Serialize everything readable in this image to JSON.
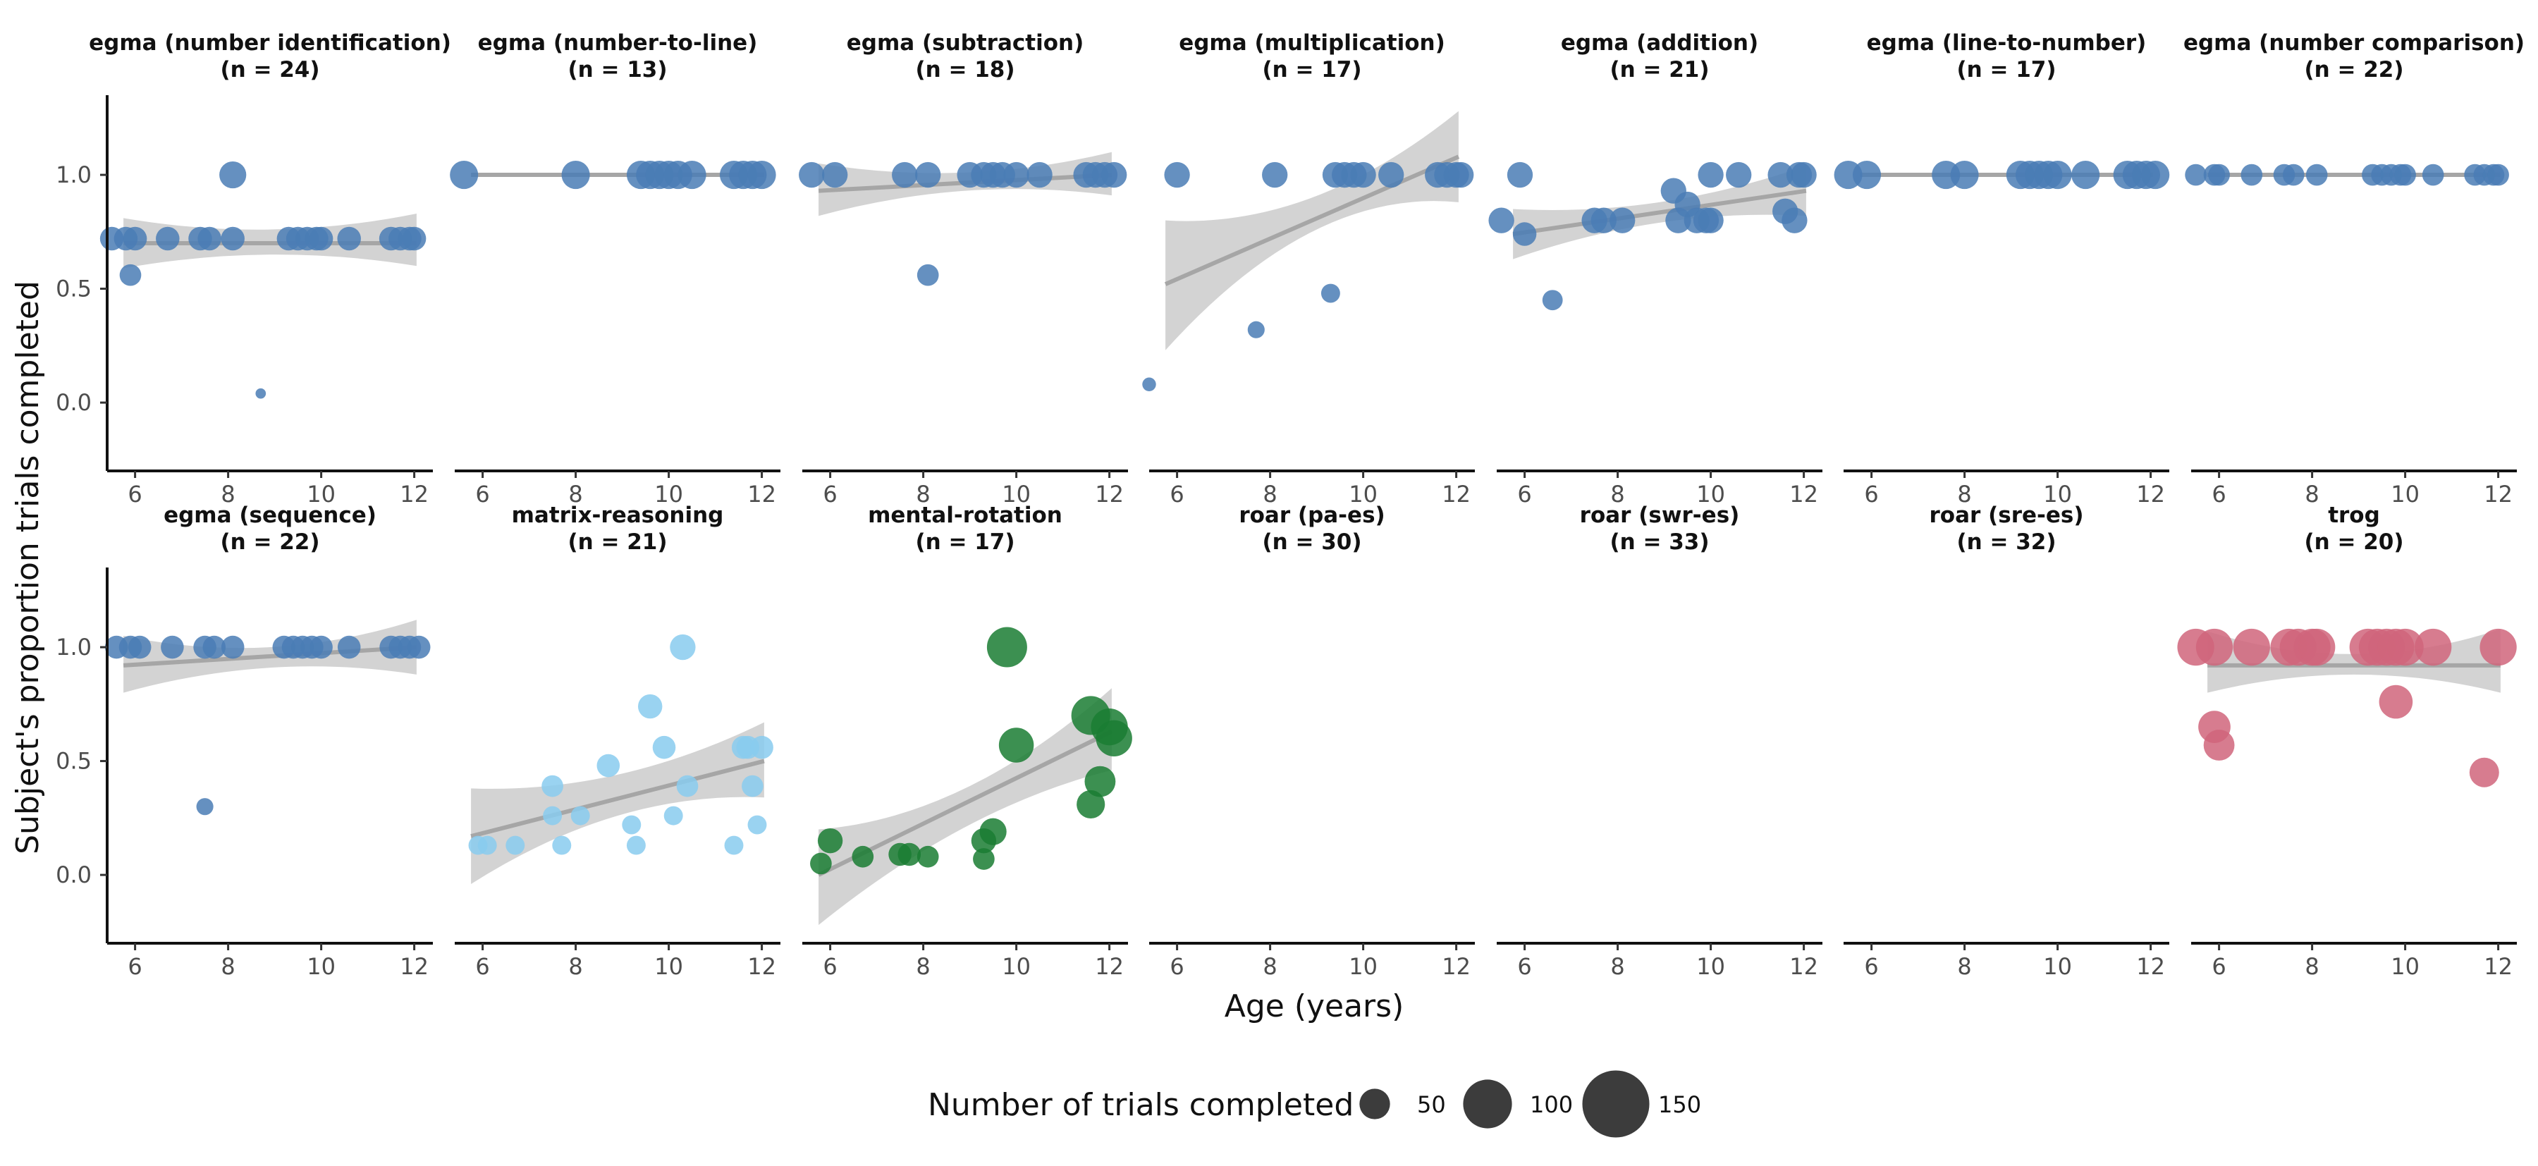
{
  "chart_data": {
    "type": "scatter",
    "xlabel": "Age (years)",
    "ylabel": "Subject's proportion trials completed",
    "xlim": [
      5.4,
      12.4
    ],
    "ylim": [
      -0.3,
      1.35
    ],
    "x_ticks": [
      6,
      8,
      10,
      12
    ],
    "y_ticks": [
      0.0,
      0.5,
      1.0
    ],
    "y_tick_labels": [
      "0.0",
      "0.5",
      "1.0"
    ],
    "grid": false,
    "legend": {
      "title": "Number of trials completed",
      "placement": "bottom",
      "sizes": [
        50,
        100,
        150
      ],
      "labels": [
        "50",
        "100",
        "150"
      ]
    },
    "colors": {
      "egma": "#4a7db5",
      "matrix": "#88cbef",
      "mental": "#1a7d33",
      "trog": "#d0657b",
      "band": "#d3d3d3",
      "line": "#a6a6a6"
    },
    "panels": [
      {
        "title": "egma (number identification)",
        "n_label": "(n = 24)",
        "color": "egma",
        "trend": [
          0.7,
          0.7
        ],
        "band_lower": [
          0.59,
          0.65,
          0.6
        ],
        "band_upper": [
          0.81,
          0.76,
          0.83
        ],
        "points": [
          [
            5.5,
            0.72,
            25
          ],
          [
            5.8,
            0.72,
            25
          ],
          [
            6.0,
            0.72,
            25
          ],
          [
            5.9,
            0.56,
            22
          ],
          [
            6.7,
            0.72,
            25
          ],
          [
            7.4,
            0.72,
            25
          ],
          [
            7.6,
            0.72,
            25
          ],
          [
            8.1,
            0.72,
            25
          ],
          [
            8.1,
            1.0,
            30
          ],
          [
            8.7,
            0.04,
            5
          ],
          [
            9.3,
            0.72,
            25
          ],
          [
            9.5,
            0.72,
            25
          ],
          [
            9.7,
            0.72,
            25
          ],
          [
            9.9,
            0.72,
            25
          ],
          [
            10.0,
            0.72,
            25
          ],
          [
            10.6,
            0.72,
            25
          ],
          [
            11.5,
            0.72,
            25
          ],
          [
            11.7,
            0.72,
            25
          ],
          [
            11.9,
            0.72,
            25
          ],
          [
            12.0,
            0.72,
            25
          ]
        ]
      },
      {
        "title": "egma (number-to-line)",
        "n_label": "(n = 13)",
        "color": "egma",
        "trend": [
          1.0,
          1.0
        ],
        "band_lower": [
          1.0,
          1.0,
          1.0
        ],
        "band_upper": [
          1.0,
          1.0,
          1.0
        ],
        "points": [
          [
            5.6,
            1.0,
            32
          ],
          [
            8.0,
            1.0,
            32
          ],
          [
            9.4,
            1.0,
            32
          ],
          [
            9.6,
            1.0,
            32
          ],
          [
            9.8,
            1.0,
            32
          ],
          [
            10.0,
            1.0,
            32
          ],
          [
            10.2,
            1.0,
            32
          ],
          [
            10.5,
            1.0,
            32
          ],
          [
            11.4,
            1.0,
            32
          ],
          [
            11.6,
            1.0,
            32
          ],
          [
            11.8,
            1.0,
            32
          ],
          [
            12.0,
            1.0,
            32
          ]
        ]
      },
      {
        "title": "egma (subtraction)",
        "n_label": "(n = 18)",
        "color": "egma",
        "trend": [
          0.93,
          1.0
        ],
        "band_lower": [
          0.82,
          0.93,
          0.91
        ],
        "band_upper": [
          1.05,
          1.01,
          1.1
        ],
        "points": [
          [
            5.6,
            1.0,
            28
          ],
          [
            6.1,
            1.0,
            28
          ],
          [
            7.6,
            1.0,
            28
          ],
          [
            8.1,
            1.0,
            28
          ],
          [
            8.1,
            0.56,
            22
          ],
          [
            9.0,
            1.0,
            28
          ],
          [
            9.3,
            1.0,
            28
          ],
          [
            9.5,
            1.0,
            28
          ],
          [
            9.7,
            1.0,
            28
          ],
          [
            10.0,
            1.0,
            28
          ],
          [
            10.5,
            1.0,
            28
          ],
          [
            11.5,
            1.0,
            28
          ],
          [
            11.7,
            1.0,
            28
          ],
          [
            11.9,
            1.0,
            28
          ],
          [
            12.1,
            1.0,
            28
          ]
        ]
      },
      {
        "title": "egma (multiplication)",
        "n_label": "(n = 17)",
        "color": "egma",
        "trend": [
          0.52,
          1.08
        ],
        "band_lower": [
          0.23,
          0.75,
          0.88
        ],
        "band_upper": [
          0.8,
          0.9,
          1.28
        ],
        "points": [
          [
            5.4,
            0.08,
            10
          ],
          [
            6.0,
            1.0,
            28
          ],
          [
            7.7,
            0.32,
            15
          ],
          [
            8.1,
            1.0,
            28
          ],
          [
            9.3,
            0.48,
            18
          ],
          [
            9.4,
            1.0,
            28
          ],
          [
            9.6,
            1.0,
            28
          ],
          [
            9.8,
            1.0,
            28
          ],
          [
            10.0,
            1.0,
            28
          ],
          [
            10.6,
            1.0,
            28
          ],
          [
            11.6,
            1.0,
            28
          ],
          [
            11.8,
            1.0,
            28
          ],
          [
            12.0,
            1.0,
            28
          ],
          [
            12.1,
            1.0,
            28
          ]
        ]
      },
      {
        "title": "egma (addition)",
        "n_label": "(n = 21)",
        "color": "egma",
        "trend": [
          0.74,
          0.93
        ],
        "band_lower": [
          0.63,
          0.79,
          0.82
        ],
        "band_upper": [
          0.85,
          0.88,
          1.04
        ],
        "points": [
          [
            5.5,
            0.8,
            28
          ],
          [
            5.9,
            1.0,
            28
          ],
          [
            6.0,
            0.74,
            25
          ],
          [
            6.6,
            0.45,
            20
          ],
          [
            7.5,
            0.8,
            28
          ],
          [
            7.7,
            0.8,
            28
          ],
          [
            8.1,
            0.8,
            28
          ],
          [
            9.2,
            0.93,
            28
          ],
          [
            9.3,
            0.8,
            28
          ],
          [
            9.5,
            0.87,
            28
          ],
          [
            9.7,
            0.8,
            28
          ],
          [
            9.9,
            0.8,
            28
          ],
          [
            10.0,
            0.8,
            28
          ],
          [
            10.0,
            1.0,
            28
          ],
          [
            10.6,
            1.0,
            28
          ],
          [
            11.5,
            1.0,
            28
          ],
          [
            11.6,
            0.84,
            28
          ],
          [
            11.8,
            0.8,
            28
          ],
          [
            11.9,
            1.0,
            28
          ],
          [
            12.0,
            1.0,
            28
          ]
        ]
      },
      {
        "title": "egma (line-to-number)",
        "n_label": "(n = 17)",
        "color": "egma",
        "trend": [
          1.0,
          1.0
        ],
        "band_lower": [
          1.0,
          1.0,
          1.0
        ],
        "band_upper": [
          1.0,
          1.0,
          1.0
        ],
        "points": [
          [
            5.5,
            1.0,
            32
          ],
          [
            5.9,
            1.0,
            32
          ],
          [
            7.6,
            1.0,
            32
          ],
          [
            8.0,
            1.0,
            32
          ],
          [
            9.2,
            1.0,
            32
          ],
          [
            9.4,
            1.0,
            32
          ],
          [
            9.6,
            1.0,
            32
          ],
          [
            9.8,
            1.0,
            32
          ],
          [
            10.0,
            1.0,
            32
          ],
          [
            10.6,
            1.0,
            32
          ],
          [
            11.5,
            1.0,
            32
          ],
          [
            11.7,
            1.0,
            32
          ],
          [
            11.9,
            1.0,
            32
          ],
          [
            12.1,
            1.0,
            32
          ]
        ]
      },
      {
        "title": "egma (number comparison)",
        "n_label": "(n = 22)",
        "color": "egma",
        "trend": [
          1.0,
          1.0
        ],
        "band_lower": [
          1.0,
          1.0,
          1.0
        ],
        "band_upper": [
          1.0,
          1.0,
          1.0
        ],
        "points": [
          [
            5.5,
            1.0,
            22
          ],
          [
            5.9,
            1.0,
            22
          ],
          [
            6.0,
            1.0,
            22
          ],
          [
            6.7,
            1.0,
            22
          ],
          [
            7.4,
            1.0,
            22
          ],
          [
            7.6,
            1.0,
            22
          ],
          [
            8.1,
            1.0,
            22
          ],
          [
            9.3,
            1.0,
            22
          ],
          [
            9.5,
            1.0,
            22
          ],
          [
            9.7,
            1.0,
            22
          ],
          [
            9.9,
            1.0,
            22
          ],
          [
            10.0,
            1.0,
            22
          ],
          [
            10.6,
            1.0,
            22
          ],
          [
            11.5,
            1.0,
            22
          ],
          [
            11.7,
            1.0,
            22
          ],
          [
            11.9,
            1.0,
            22
          ],
          [
            12.0,
            1.0,
            22
          ]
        ]
      },
      {
        "title": "egma (sequence)",
        "n_label": "(n = 22)",
        "color": "egma",
        "trend": [
          0.92,
          1.0
        ],
        "band_lower": [
          0.8,
          0.91,
          0.88
        ],
        "band_upper": [
          1.05,
          1.0,
          1.12
        ],
        "points": [
          [
            5.6,
            1.0,
            24
          ],
          [
            5.9,
            1.0,
            24
          ],
          [
            6.1,
            1.0,
            24
          ],
          [
            6.8,
            1.0,
            24
          ],
          [
            7.5,
            1.0,
            24
          ],
          [
            7.7,
            1.0,
            24
          ],
          [
            7.5,
            0.3,
            15
          ],
          [
            8.1,
            1.0,
            24
          ],
          [
            9.2,
            1.0,
            24
          ],
          [
            9.4,
            1.0,
            24
          ],
          [
            9.6,
            1.0,
            24
          ],
          [
            9.8,
            1.0,
            24
          ],
          [
            10.0,
            1.0,
            24
          ],
          [
            10.6,
            1.0,
            24
          ],
          [
            11.5,
            1.0,
            24
          ],
          [
            11.7,
            1.0,
            24
          ],
          [
            11.9,
            1.0,
            24
          ],
          [
            12.1,
            1.0,
            24
          ]
        ]
      },
      {
        "title": "matrix-reasoning",
        "n_label": "(n = 21)",
        "color": "matrix",
        "trend": [
          0.17,
          0.5
        ],
        "band_lower": [
          -0.04,
          0.26,
          0.34
        ],
        "band_upper": [
          0.38,
          0.44,
          0.67
        ],
        "points": [
          [
            5.9,
            0.13,
            18
          ],
          [
            6.1,
            0.13,
            18
          ],
          [
            6.7,
            0.13,
            18
          ],
          [
            7.5,
            0.39,
            22
          ],
          [
            7.5,
            0.26,
            18
          ],
          [
            7.7,
            0.13,
            18
          ],
          [
            8.1,
            0.26,
            18
          ],
          [
            8.7,
            0.48,
            24
          ],
          [
            9.2,
            0.22,
            18
          ],
          [
            9.3,
            0.13,
            18
          ],
          [
            9.6,
            0.74,
            26
          ],
          [
            9.9,
            0.56,
            24
          ],
          [
            10.1,
            0.26,
            18
          ],
          [
            10.3,
            1.0,
            28
          ],
          [
            10.4,
            0.39,
            22
          ],
          [
            11.4,
            0.13,
            18
          ],
          [
            11.6,
            0.56,
            24
          ],
          [
            11.7,
            0.56,
            24
          ],
          [
            11.8,
            0.39,
            22
          ],
          [
            11.9,
            0.22,
            18
          ],
          [
            12.0,
            0.56,
            24
          ]
        ]
      },
      {
        "title": "mental-rotation",
        "n_label": "(n = 17)",
        "color": "mental",
        "trend": [
          0.0,
          0.63
        ],
        "band_lower": [
          -0.22,
          0.21,
          0.46
        ],
        "band_upper": [
          0.2,
          0.38,
          0.82
        ],
        "points": [
          [
            5.8,
            0.05,
            22
          ],
          [
            6.0,
            0.15,
            27
          ],
          [
            6.7,
            0.08,
            22
          ],
          [
            7.5,
            0.09,
            24
          ],
          [
            7.7,
            0.09,
            24
          ],
          [
            8.1,
            0.08,
            22
          ],
          [
            9.3,
            0.07,
            22
          ],
          [
            9.3,
            0.15,
            27
          ],
          [
            9.5,
            0.19,
            30
          ],
          [
            9.8,
            1.0,
            50
          ],
          [
            10.0,
            0.57,
            42
          ],
          [
            11.6,
            0.7,
            48
          ],
          [
            11.6,
            0.31,
            32
          ],
          [
            11.8,
            0.41,
            36
          ],
          [
            12.0,
            0.65,
            45
          ],
          [
            12.1,
            0.6,
            44
          ]
        ]
      },
      {
        "title": "roar (pa-es)",
        "n_label": "(n = 30)",
        "color": "egma",
        "trend": [],
        "band_lower": [],
        "band_upper": [],
        "points": []
      },
      {
        "title": "roar (swr-es)",
        "n_label": "(n = 33)",
        "color": "egma",
        "trend": [],
        "band_lower": [],
        "band_upper": [],
        "points": []
      },
      {
        "title": "roar (sre-es)",
        "n_label": "(n = 32)",
        "color": "egma",
        "trend": [],
        "band_lower": [],
        "band_upper": [],
        "points": []
      },
      {
        "title": "trog",
        "n_label": "(n = 20)",
        "color": "trog",
        "trend": [
          0.92,
          0.92
        ],
        "band_lower": [
          0.8,
          0.88,
          0.8
        ],
        "band_upper": [
          1.07,
          0.97,
          1.08
        ],
        "points": [
          [
            5.5,
            1.0,
            45
          ],
          [
            5.9,
            1.0,
            45
          ],
          [
            5.9,
            0.65,
            38
          ],
          [
            6.0,
            0.57,
            36
          ],
          [
            6.7,
            1.0,
            45
          ],
          [
            7.5,
            1.0,
            45
          ],
          [
            7.7,
            1.0,
            45
          ],
          [
            8.0,
            1.0,
            45
          ],
          [
            8.1,
            1.0,
            45
          ],
          [
            9.2,
            1.0,
            45
          ],
          [
            9.4,
            1.0,
            45
          ],
          [
            9.6,
            1.0,
            45
          ],
          [
            9.8,
            1.0,
            45
          ],
          [
            9.8,
            0.76,
            40
          ],
          [
            10.0,
            1.0,
            45
          ],
          [
            10.6,
            1.0,
            45
          ],
          [
            11.7,
            0.45,
            34
          ],
          [
            12.0,
            1.0,
            45
          ]
        ]
      }
    ]
  }
}
